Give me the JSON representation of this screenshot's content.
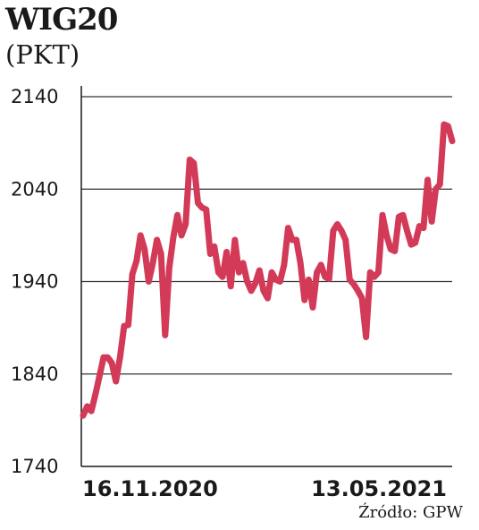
{
  "title": "WIG20",
  "unit": "(PKT)",
  "source": "Źródło: GPW",
  "chart_data": {
    "type": "line",
    "title": "WIG20",
    "ylabel": "(PKT)",
    "xlabel": "",
    "ylim": [
      1740,
      2140
    ],
    "yticks": [
      1740,
      1840,
      1940,
      2040,
      2140
    ],
    "x_start": "16.11.2020",
    "x_end": "13.05.2021",
    "x_tick_labels": [
      "16.11.2020",
      "13.05.2021"
    ],
    "grid": true,
    "color": "#d23a58",
    "series": [
      {
        "name": "",
        "values": [
          1795,
          1805,
          1800,
          1818,
          1838,
          1858,
          1858,
          1852,
          1832,
          1858,
          1892,
          1893,
          1948,
          1962,
          1990,
          1975,
          1940,
          1960,
          1985,
          1970,
          1882,
          1955,
          1988,
          2012,
          1990,
          2002,
          2072,
          2068,
          2025,
          2020,
          2018,
          1970,
          1978,
          1950,
          1945,
          1972,
          1935,
          1985,
          1950,
          1960,
          1940,
          1930,
          1938,
          1952,
          1930,
          1922,
          1950,
          1942,
          1940,
          1958,
          1998,
          1985,
          1985,
          1960,
          1920,
          1942,
          1912,
          1950,
          1958,
          1945,
          1943,
          1995,
          2002,
          1995,
          1985,
          1942,
          1937,
          1930,
          1922,
          1880,
          1950,
          1945,
          1950,
          2012,
          1990,
          1975,
          1973,
          2010,
          2012,
          1995,
          1980,
          1982,
          2000,
          1998,
          2050,
          2005,
          2040,
          2045,
          2110,
          2108,
          2092
        ]
      }
    ]
  }
}
